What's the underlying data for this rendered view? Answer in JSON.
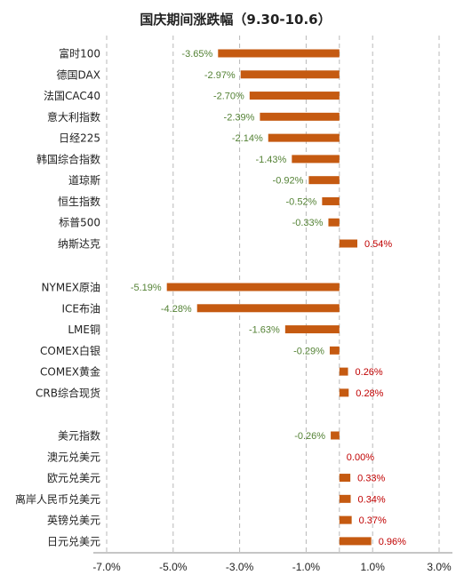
{
  "chart_data": {
    "type": "bar",
    "orientation": "horizontal",
    "title": "国庆期间涨跌幅（9.30-10.6）",
    "xlim": [
      -7.0,
      3.0
    ],
    "xticks": [
      -7.0,
      -5.0,
      -3.0,
      -1.0,
      1.0,
      3.0
    ],
    "xtick_labels": [
      "-7.0%",
      "-5.0%",
      "-3.0%",
      "-1.0%",
      "1.0%",
      "3.0%"
    ],
    "grid": true,
    "legend": "none",
    "colors": {
      "bar": "#C55A11",
      "negative_label": "#548235",
      "positive_label": "#C00000"
    },
    "groups": [
      {
        "categories": [
          "富时100",
          "德国DAX",
          "法国CAC40",
          "意大利指数",
          "日经225",
          "韩国综合指数",
          "道琼斯",
          "恒生指数",
          "标普500",
          "纳斯达克"
        ],
        "values": [
          -3.65,
          -2.97,
          -2.7,
          -2.39,
          -2.14,
          -1.43,
          -0.92,
          -0.52,
          -0.33,
          0.54
        ],
        "labels": [
          "-3.65%",
          "-2.97%",
          "-2.70%",
          "-2.39%",
          "-2.14%",
          "-1.43%",
          "-0.92%",
          "-0.52%",
          "-0.33%",
          "0.54%"
        ]
      },
      {
        "categories": [
          "NYMEX原油",
          "ICE布油",
          "LME铜",
          "COMEX白银",
          "COMEX黄金",
          "CRB综合现货"
        ],
        "values": [
          -5.19,
          -4.28,
          -1.63,
          -0.29,
          0.26,
          0.28
        ],
        "labels": [
          "-5.19%",
          "-4.28%",
          "-1.63%",
          "-0.29%",
          "0.26%",
          "0.28%"
        ]
      },
      {
        "categories": [
          "美元指数",
          "澳元兑美元",
          "欧元兑美元",
          "离岸人民币兑美元",
          "英镑兑美元",
          "日元兑美元"
        ],
        "values": [
          -0.26,
          0.0,
          0.33,
          0.34,
          0.37,
          0.96
        ],
        "labels": [
          "-0.26%",
          "0.00%",
          "0.33%",
          "0.34%",
          "0.37%",
          "0.96%"
        ]
      }
    ]
  }
}
